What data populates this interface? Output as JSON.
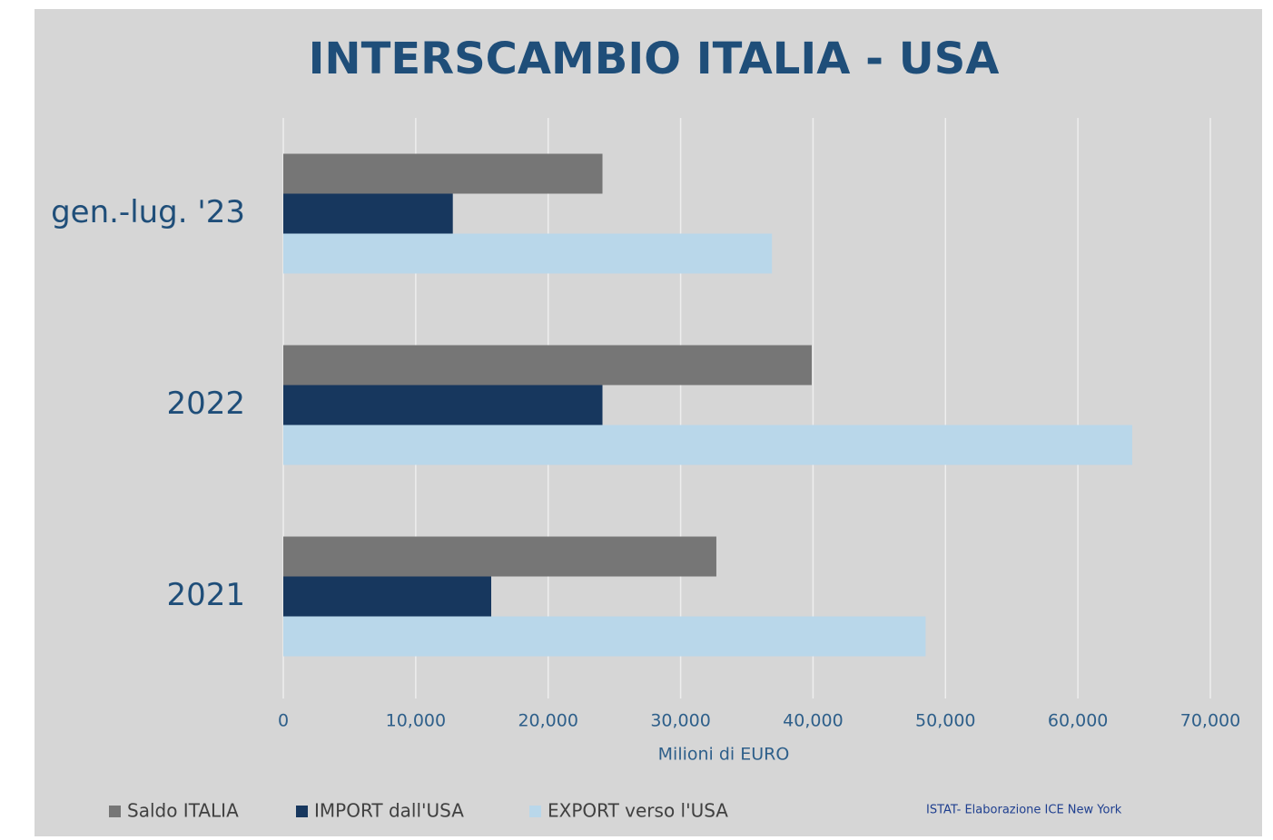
{
  "chart_data": {
    "type": "hbar",
    "title": "INTERSCAMBIO  ITALIA - USA",
    "x_label": "Milioni di EURO",
    "source": "ISTAT- Elaborazione ICE New York",
    "categories": [
      "gen.-lug. '23",
      "2022",
      "2021"
    ],
    "series": [
      {
        "name": "Saldo ITALIA",
        "color": "#767676",
        "values": [
          24100,
          39900,
          32700
        ]
      },
      {
        "name": "IMPORT dall'USA",
        "color": "#17375e",
        "values": [
          12800,
          24100,
          15700
        ]
      },
      {
        "name": "EXPORT verso l'USA",
        "color": "#b9d7ea",
        "values": [
          36900,
          64100,
          48500
        ]
      }
    ],
    "xlim": [
      0,
      70000
    ],
    "xticks": [
      0,
      {
        "value": 10000,
        "label": "10,000"
      },
      {
        "value": 20000,
        "label": "20,000"
      },
      {
        "value": 30000,
        "label": "30,000"
      },
      {
        "value": 40000,
        "label": "40,000"
      },
      {
        "value": 50000,
        "label": "50,000"
      },
      {
        "value": 60000,
        "label": "60,000"
      },
      {
        "value": 70000,
        "label": "70,000"
      }
    ],
    "grid": true
  }
}
